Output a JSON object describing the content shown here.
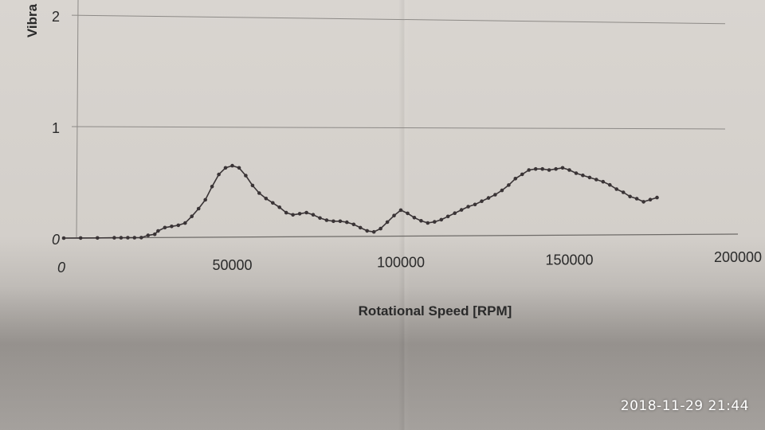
{
  "photo": {
    "timestamp": "2018-11-29 21:44"
  },
  "chart_data": {
    "type": "scatter",
    "xlabel": "Rotational Speed [RPM]",
    "ylabel": "Vibra",
    "xlim": [
      0,
      200000
    ],
    "ylim": [
      0,
      2.1
    ],
    "x_ticks": [
      0,
      50000,
      100000,
      150000,
      200000
    ],
    "x_tick_labels": [
      "0",
      "50000",
      "100000",
      "150000",
      "200000"
    ],
    "y_ticks": [
      0,
      1,
      2
    ],
    "y_tick_labels": [
      "0",
      "1",
      "2"
    ],
    "grid": "horizontal",
    "series": [
      {
        "color": "#3a3436",
        "x": [
          0,
          5000,
          10000,
          15000,
          17000,
          19000,
          21000,
          23000,
          25000,
          27000,
          28000,
          30000,
          32000,
          34000,
          36000,
          38000,
          40000,
          42000,
          44000,
          46000,
          48000,
          50000,
          52000,
          54000,
          56000,
          58000,
          60000,
          62000,
          64000,
          66000,
          68000,
          70000,
          72000,
          74000,
          76000,
          78000,
          80000,
          82000,
          84000,
          86000,
          88000,
          90000,
          92000,
          94000,
          96000,
          98000,
          100000,
          102000,
          104000,
          106000,
          108000,
          110000,
          112000,
          114000,
          116000,
          118000,
          120000,
          122000,
          124000,
          126000,
          128000,
          130000,
          132000,
          134000,
          136000,
          138000,
          140000,
          142000,
          144000,
          146000,
          148000,
          150000,
          152000,
          154000,
          156000,
          158000,
          160000,
          162000,
          164000,
          166000,
          168000,
          170000,
          172000,
          174000,
          176000
        ],
        "y": [
          0,
          0,
          0,
          0,
          0,
          0,
          0,
          0,
          0.02,
          0.03,
          0.06,
          0.09,
          0.1,
          0.11,
          0.13,
          0.19,
          0.26,
          0.34,
          0.46,
          0.57,
          0.63,
          0.65,
          0.63,
          0.56,
          0.47,
          0.4,
          0.35,
          0.31,
          0.27,
          0.22,
          0.2,
          0.21,
          0.22,
          0.2,
          0.17,
          0.15,
          0.14,
          0.14,
          0.13,
          0.11,
          0.08,
          0.05,
          0.04,
          0.07,
          0.13,
          0.19,
          0.24,
          0.21,
          0.17,
          0.14,
          0.12,
          0.13,
          0.15,
          0.18,
          0.21,
          0.24,
          0.27,
          0.29,
          0.32,
          0.35,
          0.38,
          0.42,
          0.47,
          0.53,
          0.57,
          0.61,
          0.62,
          0.62,
          0.61,
          0.62,
          0.63,
          0.61,
          0.58,
          0.56,
          0.54,
          0.52,
          0.5,
          0.47,
          0.43,
          0.4,
          0.36,
          0.34,
          0.31,
          0.33,
          0.35
        ]
      }
    ]
  }
}
